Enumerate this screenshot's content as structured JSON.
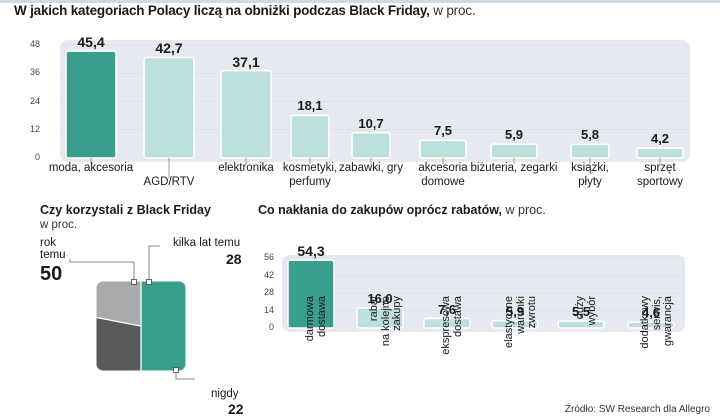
{
  "source": "Źródło: SW Research dla Allegro",
  "chart_data": [
    {
      "type": "bar",
      "title": "W jakich kategoriach Polacy liczą na obniżki podczas Black Friday,",
      "subtitle": "w proc.",
      "ylim": [
        0,
        48
      ],
      "yticks": [
        0,
        12,
        24,
        36,
        48
      ],
      "categories": [
        "moda, akcesoria",
        "AGD/RTV",
        "elektronika",
        "kosmetyki,\nperfumy",
        "zabawki, gry",
        "akcesoria\ndomowe",
        "biżuteria, zegarki",
        "książki,\npłyty",
        "sprzęt\nsportowy"
      ],
      "values": [
        45.4,
        42.7,
        37.1,
        18.1,
        10.7,
        7.5,
        5.9,
        5.8,
        4.2
      ],
      "value_labels": [
        "45,4",
        "42,7",
        "37,1",
        "18,1",
        "10,7",
        "7,5",
        "5,9",
        "5,8",
        "4,2"
      ],
      "highlight_color": "#3a9e8c",
      "bar_color": "#bde0dc",
      "panel_color": "#e6eaf0"
    },
    {
      "type": "pie",
      "title": "Czy korzystali z Black Friday",
      "subtitle": "w proc.",
      "slices": [
        {
          "label": "rok\ntemu",
          "value": 50,
          "value_label": "50",
          "color": "#3a9e8c"
        },
        {
          "label": "kilka lat temu",
          "value": 28,
          "value_label": "28",
          "color": "#595a5c"
        },
        {
          "label": "nigdy",
          "value": 22,
          "value_label": "22",
          "color": "#a9aaab"
        }
      ]
    },
    {
      "type": "bar",
      "title": "Co nakłania do zakupów oprócz rabatów,",
      "subtitle": "w proc.",
      "ylim": [
        0,
        56
      ],
      "yticks": [
        0,
        14,
        28,
        42,
        56
      ],
      "categories": [
        "darmowa\ndostawa",
        "rabat\nna kolejne\nzakupy",
        "ekspresowa\ndostawa",
        "elastyczne\nwarunki\nzwrotu",
        "duży\nwybór",
        "dodatkowy\nserwis,\ngwarancja"
      ],
      "values": [
        54.3,
        16.0,
        7.6,
        5.9,
        5.5,
        4.6
      ],
      "value_labels": [
        "54,3",
        "16,0",
        "7,6",
        "5,9",
        "5,5",
        "4,6"
      ],
      "highlight_color": "#3a9e8c",
      "bar_color": "#bde0dc",
      "panel_color": "#e6eaf0"
    }
  ]
}
